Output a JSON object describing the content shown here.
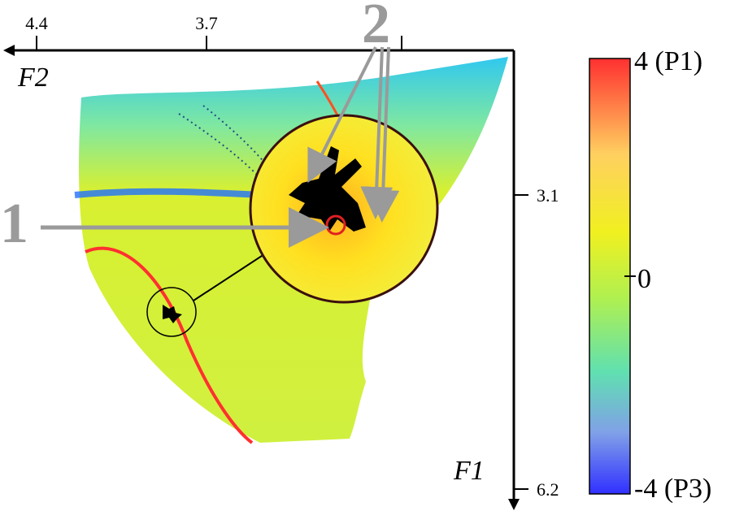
{
  "axes": {
    "top": {
      "label": "F2",
      "ticks": [
        "4.4",
        "3.7"
      ]
    },
    "right": {
      "label": "F1",
      "ticks": [
        "3.1",
        "6.2"
      ]
    }
  },
  "colorbar": {
    "labels": [
      "4 (P1)",
      "0",
      "-4 (P3)"
    ]
  },
  "annotations": [
    "1",
    "2"
  ]
}
